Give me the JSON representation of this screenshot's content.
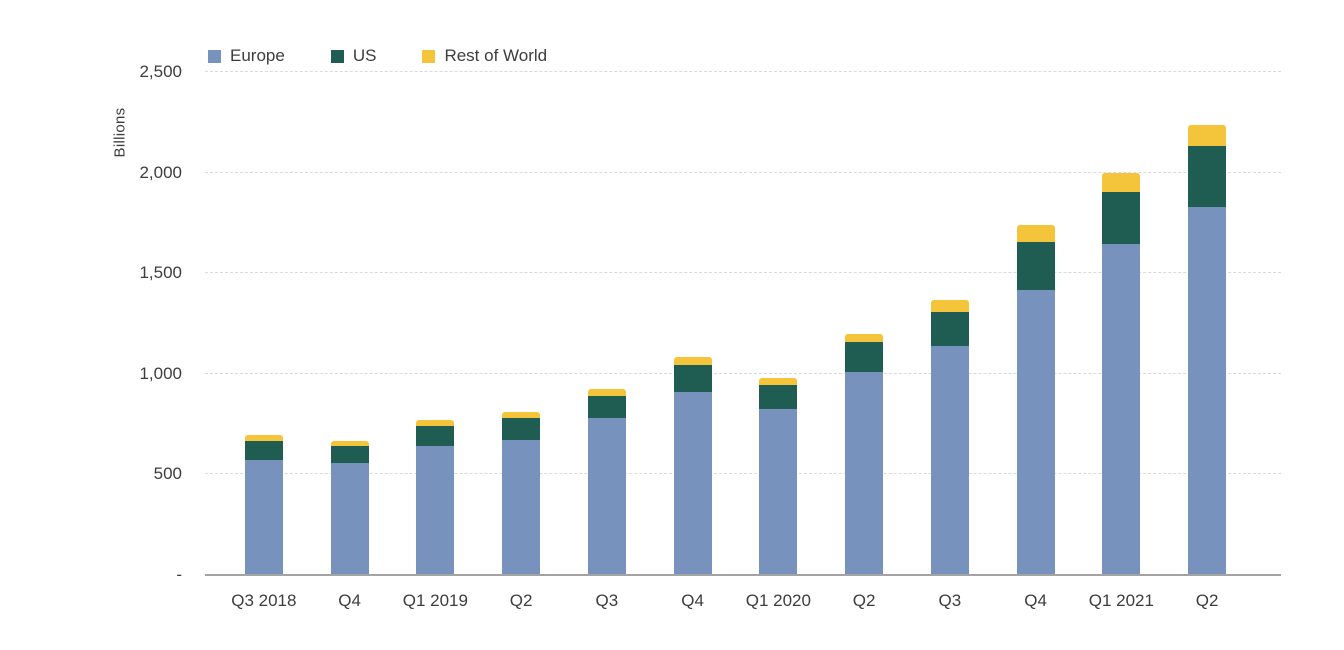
{
  "colors": {
    "background": "#ffffff",
    "axis_line": "#a3a3a3",
    "gridline": "#dadada",
    "text": "#3d3d3d"
  },
  "chart_data": {
    "type": "bar",
    "stacked": true,
    "title": "",
    "xlabel": "",
    "ylabel": "Billions",
    "ylim": [
      0,
      2500
    ],
    "grid": "dashed-horizontal",
    "legend_position": "top-left",
    "categories": [
      "Q3 2018",
      "Q4",
      "Q1 2019",
      "Q2",
      "Q3",
      "Q4",
      "Q1 2020",
      "Q2",
      "Q3",
      "Q4",
      "Q1 2021",
      "Q2"
    ],
    "y_ticks": [
      {
        "value": 0,
        "label": "-"
      },
      {
        "value": 500,
        "label": "500"
      },
      {
        "value": 1000,
        "label": "1,000"
      },
      {
        "value": 1500,
        "label": "1,500"
      },
      {
        "value": 2000,
        "label": "2,000"
      },
      {
        "value": 2500,
        "label": "2,500"
      }
    ],
    "series": [
      {
        "name": "Europe",
        "color": "#7792BC",
        "values": [
          570,
          555,
          640,
          670,
          780,
          910,
          825,
          1010,
          1140,
          1415,
          1645,
          1830
        ]
      },
      {
        "name": "US",
        "color": "#1F5C52",
        "values": [
          95,
          85,
          100,
          110,
          110,
          135,
          120,
          150,
          170,
          240,
          260,
          305
        ]
      },
      {
        "name": "Rest of World",
        "color": "#F4C43B",
        "values": [
          30,
          25,
          30,
          30,
          35,
          40,
          35,
          40,
          60,
          85,
          95,
          105
        ]
      }
    ]
  }
}
